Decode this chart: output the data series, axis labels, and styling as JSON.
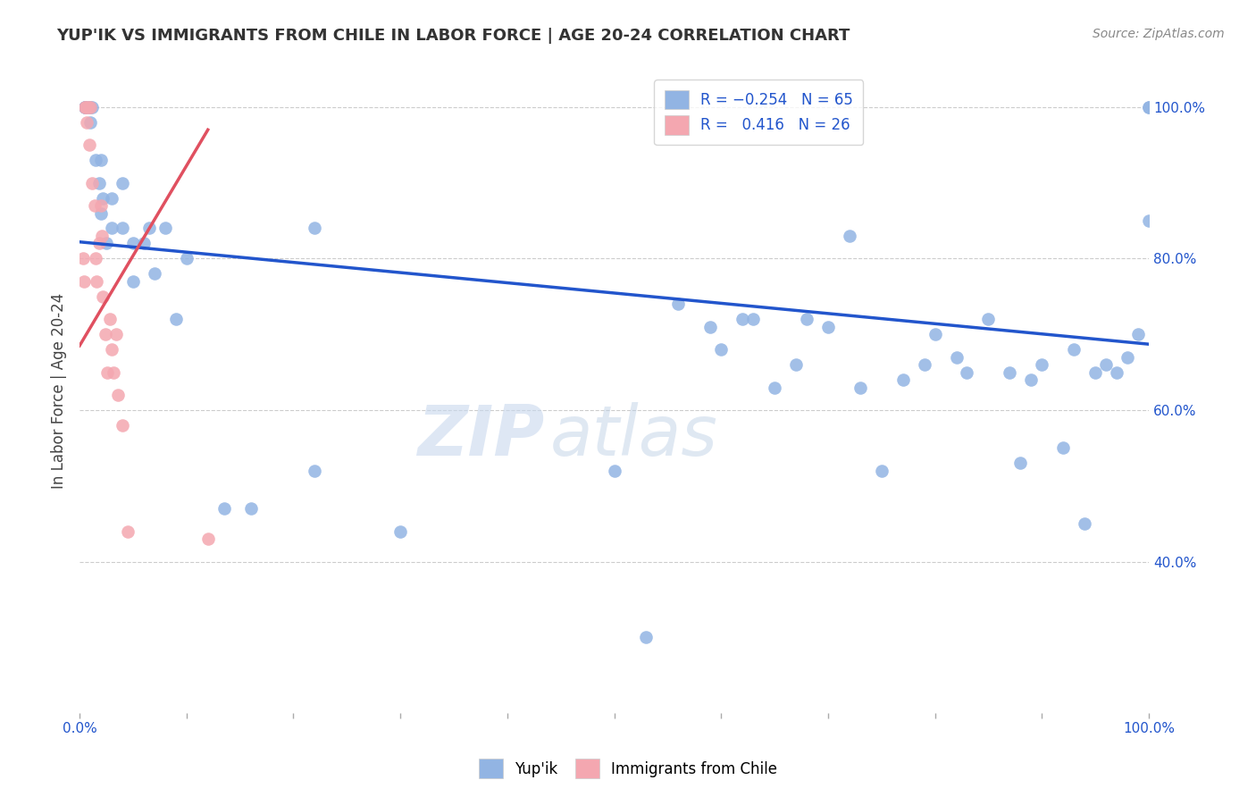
{
  "title": "YUP'IK VS IMMIGRANTS FROM CHILE IN LABOR FORCE | AGE 20-24 CORRELATION CHART",
  "source": "Source: ZipAtlas.com",
  "ylabel": "In Labor Force | Age 20-24",
  "x_min": 0.0,
  "x_max": 1.0,
  "y_min": 0.2,
  "y_max": 1.05,
  "x_ticks": [
    0.0,
    0.1,
    0.2,
    0.3,
    0.4,
    0.5,
    0.6,
    0.7,
    0.8,
    0.9,
    1.0
  ],
  "x_tick_labels": [
    "0.0%",
    "",
    "",
    "",
    "",
    "",
    "",
    "",
    "",
    "",
    "100.0%"
  ],
  "y_tick_labels_right": [
    "40.0%",
    "60.0%",
    "80.0%",
    "100.0%"
  ],
  "y_tick_vals_right": [
    0.4,
    0.6,
    0.8,
    1.0
  ],
  "legend_blue_label": "Yup'ik",
  "legend_pink_label": "Immigrants from Chile",
  "blue_color": "#92b4e3",
  "pink_color": "#f4a7b0",
  "trendline_blue_color": "#2255cc",
  "trendline_pink_color": "#e05060",
  "watermark_zip": "ZIP",
  "watermark_atlas": "atlas",
  "blue_scatter_x": [
    0.005,
    0.005,
    0.005,
    0.008,
    0.01,
    0.01,
    0.012,
    0.015,
    0.018,
    0.02,
    0.02,
    0.022,
    0.025,
    0.03,
    0.03,
    0.04,
    0.04,
    0.05,
    0.05,
    0.06,
    0.065,
    0.07,
    0.08,
    0.09,
    0.1,
    0.135,
    0.16,
    0.22,
    0.22,
    0.3,
    0.5,
    0.53,
    0.56,
    0.59,
    0.6,
    0.62,
    0.63,
    0.65,
    0.67,
    0.68,
    0.7,
    0.72,
    0.73,
    0.75,
    0.77,
    0.79,
    0.8,
    0.82,
    0.83,
    0.85,
    0.87,
    0.88,
    0.89,
    0.9,
    0.92,
    0.93,
    0.94,
    0.95,
    0.96,
    0.97,
    0.98,
    0.99,
    1.0,
    1.0,
    1.0
  ],
  "blue_scatter_y": [
    1.0,
    1.0,
    1.0,
    1.0,
    1.0,
    0.98,
    1.0,
    0.93,
    0.9,
    0.86,
    0.93,
    0.88,
    0.82,
    0.88,
    0.84,
    0.9,
    0.84,
    0.82,
    0.77,
    0.82,
    0.84,
    0.78,
    0.84,
    0.72,
    0.8,
    0.47,
    0.47,
    0.84,
    0.52,
    0.44,
    0.52,
    0.3,
    0.74,
    0.71,
    0.68,
    0.72,
    0.72,
    0.63,
    0.66,
    0.72,
    0.71,
    0.83,
    0.63,
    0.52,
    0.64,
    0.66,
    0.7,
    0.67,
    0.65,
    0.72,
    0.65,
    0.53,
    0.64,
    0.66,
    0.55,
    0.68,
    0.45,
    0.65,
    0.66,
    0.65,
    0.67,
    0.7,
    1.0,
    0.85,
    1.0
  ],
  "pink_scatter_x": [
    0.003,
    0.004,
    0.005,
    0.006,
    0.007,
    0.008,
    0.009,
    0.01,
    0.012,
    0.014,
    0.015,
    0.016,
    0.018,
    0.02,
    0.021,
    0.022,
    0.024,
    0.026,
    0.028,
    0.03,
    0.032,
    0.034,
    0.036,
    0.04,
    0.045,
    0.12
  ],
  "pink_scatter_y": [
    0.8,
    0.77,
    1.0,
    1.0,
    0.98,
    1.0,
    0.95,
    1.0,
    0.9,
    0.87,
    0.8,
    0.77,
    0.82,
    0.87,
    0.83,
    0.75,
    0.7,
    0.65,
    0.72,
    0.68,
    0.65,
    0.7,
    0.62,
    0.58,
    0.44,
    0.43
  ],
  "blue_trend_x": [
    0.0,
    1.0
  ],
  "blue_trend_y": [
    0.822,
    0.687
  ],
  "pink_trend_x": [
    0.0,
    0.12
  ],
  "pink_trend_y": [
    0.685,
    0.97
  ]
}
